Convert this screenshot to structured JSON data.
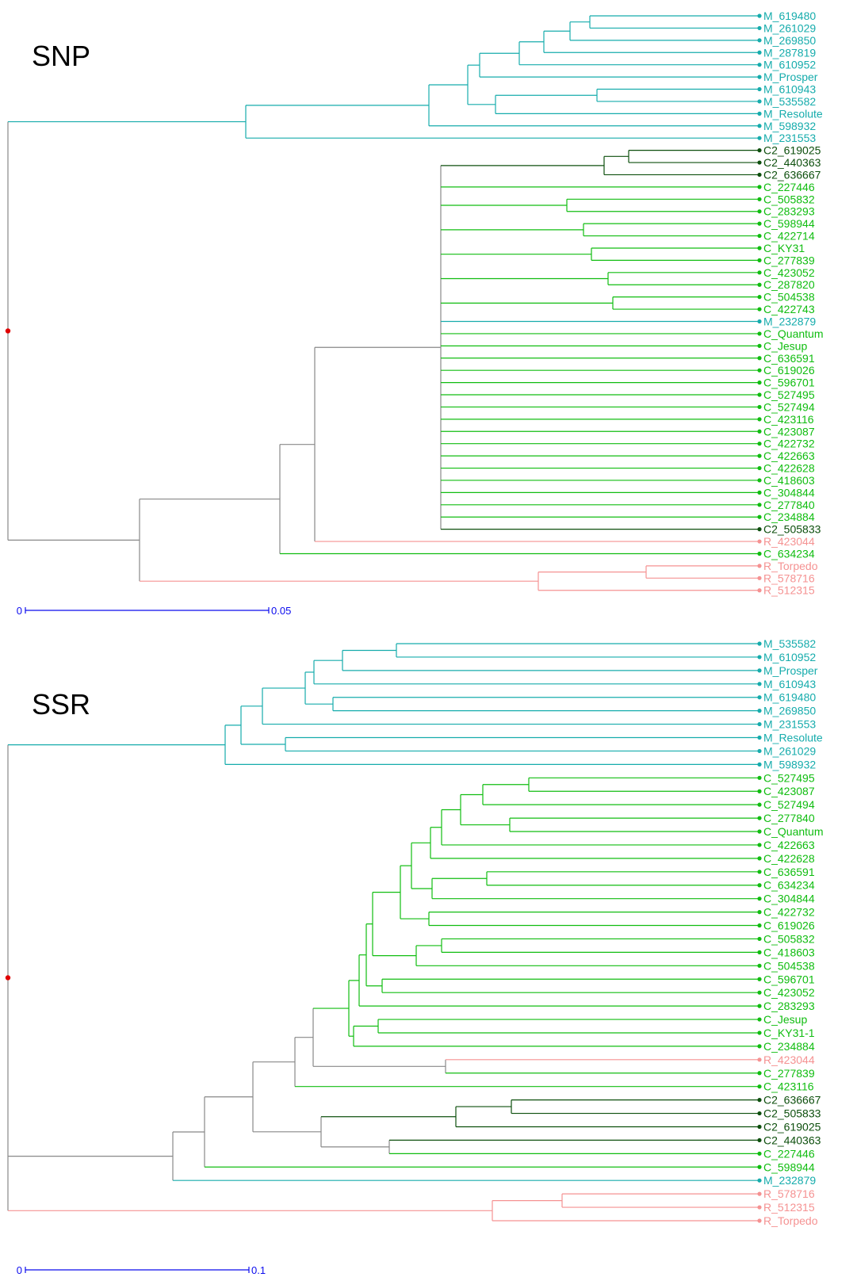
{
  "colors": {
    "M": "#16acac",
    "C": "#10bd10",
    "C2": "#0d4f0d",
    "R": "#f59292",
    "mixed": "#888888",
    "root": "#e00000",
    "scale": "#0a0aee"
  },
  "trees": [
    {
      "id": "snp",
      "title": "SNP",
      "scale": {
        "start_label": "0",
        "end_label": "0.05"
      },
      "leaves": [
        {
          "label": "M_619480",
          "group": "M"
        },
        {
          "label": "M_261029",
          "group": "M"
        },
        {
          "label": "M_269850",
          "group": "M"
        },
        {
          "label": "M_287819",
          "group": "M"
        },
        {
          "label": "M_610952",
          "group": "M"
        },
        {
          "label": "M_Prosper",
          "group": "M"
        },
        {
          "label": "M_610943",
          "group": "M"
        },
        {
          "label": "M_535582",
          "group": "M"
        },
        {
          "label": "M_Resolute",
          "group": "M"
        },
        {
          "label": "M_598932",
          "group": "M"
        },
        {
          "label": "M_231553",
          "group": "M"
        },
        {
          "label": "C2_619025",
          "group": "C2"
        },
        {
          "label": "C2_440363",
          "group": "C2"
        },
        {
          "label": "C2_636667",
          "group": "C2"
        },
        {
          "label": "C_227446",
          "group": "C"
        },
        {
          "label": "C_505832",
          "group": "C"
        },
        {
          "label": "C_283293",
          "group": "C"
        },
        {
          "label": "C_598944",
          "group": "C"
        },
        {
          "label": "C_422714",
          "group": "C"
        },
        {
          "label": "C_KY31",
          "group": "C"
        },
        {
          "label": "C_277839",
          "group": "C"
        },
        {
          "label": "C_423052",
          "group": "C"
        },
        {
          "label": "C_287820",
          "group": "C"
        },
        {
          "label": "C_504538",
          "group": "C"
        },
        {
          "label": "C_422743",
          "group": "C"
        },
        {
          "label": "M_232879",
          "group": "M"
        },
        {
          "label": "C_Quantum",
          "group": "C"
        },
        {
          "label": "C_Jesup",
          "group": "C"
        },
        {
          "label": "C_636591",
          "group": "C"
        },
        {
          "label": "C_619026",
          "group": "C"
        },
        {
          "label": "C_596701",
          "group": "C"
        },
        {
          "label": "C_527495",
          "group": "C"
        },
        {
          "label": "C_527494",
          "group": "C"
        },
        {
          "label": "C_423116",
          "group": "C"
        },
        {
          "label": "C_423087",
          "group": "C"
        },
        {
          "label": "C_422732",
          "group": "C"
        },
        {
          "label": "C_422663",
          "group": "C"
        },
        {
          "label": "C_422628",
          "group": "C"
        },
        {
          "label": "C_418603",
          "group": "C"
        },
        {
          "label": "C_304844",
          "group": "C"
        },
        {
          "label": "C_277840",
          "group": "C"
        },
        {
          "label": "C_234884",
          "group": "C"
        },
        {
          "label": "C2_505833",
          "group": "C2"
        },
        {
          "label": "R_423044",
          "group": "R"
        },
        {
          "label": "C_634234",
          "group": "C"
        },
        {
          "label": "R_Torpedo",
          "group": "R"
        },
        {
          "label": "R_578716",
          "group": "R"
        },
        {
          "label": "R_512315",
          "group": "R"
        }
      ]
    },
    {
      "id": "ssr",
      "title": "SSR",
      "scale": {
        "start_label": "0",
        "end_label": "0.1"
      },
      "leaves": [
        {
          "label": "M_535582",
          "group": "M"
        },
        {
          "label": "M_610952",
          "group": "M"
        },
        {
          "label": "M_Prosper",
          "group": "M"
        },
        {
          "label": "M_610943",
          "group": "M"
        },
        {
          "label": "M_619480",
          "group": "M"
        },
        {
          "label": "M_269850",
          "group": "M"
        },
        {
          "label": "M_231553",
          "group": "M"
        },
        {
          "label": "M_Resolute",
          "group": "M"
        },
        {
          "label": "M_261029",
          "group": "M"
        },
        {
          "label": "M_598932",
          "group": "M"
        },
        {
          "label": "C_527495",
          "group": "C"
        },
        {
          "label": "C_423087",
          "group": "C"
        },
        {
          "label": "C_527494",
          "group": "C"
        },
        {
          "label": "C_277840",
          "group": "C"
        },
        {
          "label": "C_Quantum",
          "group": "C"
        },
        {
          "label": "C_422663",
          "group": "C"
        },
        {
          "label": "C_422628",
          "group": "C"
        },
        {
          "label": "C_636591",
          "group": "C"
        },
        {
          "label": "C_634234",
          "group": "C"
        },
        {
          "label": "C_304844",
          "group": "C"
        },
        {
          "label": "C_422732",
          "group": "C"
        },
        {
          "label": "C_619026",
          "group": "C"
        },
        {
          "label": "C_505832",
          "group": "C"
        },
        {
          "label": "C_418603",
          "group": "C"
        },
        {
          "label": "C_504538",
          "group": "C"
        },
        {
          "label": "C_596701",
          "group": "C"
        },
        {
          "label": "C_423052",
          "group": "C"
        },
        {
          "label": "C_283293",
          "group": "C"
        },
        {
          "label": "C_Jesup",
          "group": "C"
        },
        {
          "label": "C_KY31-1",
          "group": "C"
        },
        {
          "label": "C_234884",
          "group": "C"
        },
        {
          "label": "R_423044",
          "group": "R"
        },
        {
          "label": "C_277839",
          "group": "C"
        },
        {
          "label": "C_423116",
          "group": "C"
        },
        {
          "label": "C2_636667",
          "group": "C2"
        },
        {
          "label": "C2_505833",
          "group": "C2"
        },
        {
          "label": "C2_619025",
          "group": "C2"
        },
        {
          "label": "C2_440363",
          "group": "C2"
        },
        {
          "label": "C_227446",
          "group": "C"
        },
        {
          "label": "C_598944",
          "group": "C"
        },
        {
          "label": "M_232879",
          "group": "M"
        },
        {
          "label": "R_578716",
          "group": "R"
        },
        {
          "label": "R_512315",
          "group": "R"
        },
        {
          "label": "R_Torpedo",
          "group": "R"
        }
      ]
    }
  ]
}
